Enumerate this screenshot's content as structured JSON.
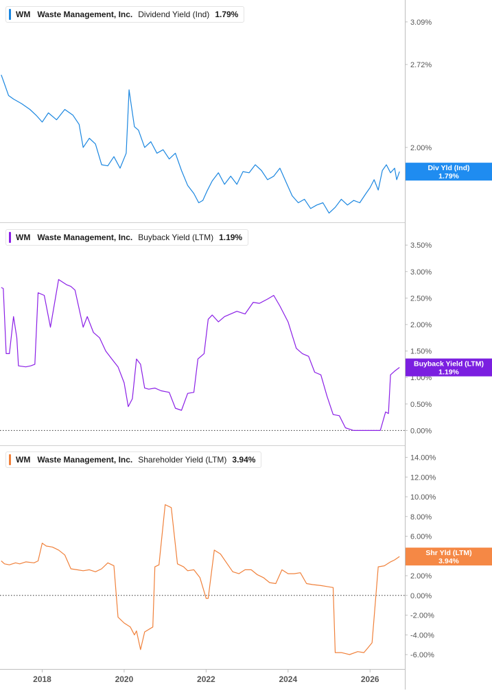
{
  "chart_data": [
    {
      "type": "line",
      "legend": {
        "ticker": "WM",
        "company": "Waste Management, Inc.",
        "metric": "Dividend Yield (Ind)",
        "value": "1.79%"
      },
      "tag": {
        "line1": "Div Yld (Ind)",
        "line2": "1.79%"
      },
      "color": "#1a86e0",
      "tag_color": "#1f8cf0",
      "ylim": [
        1.35,
        3.28
      ],
      "y_ticks": [
        {
          "value": 3.09,
          "label": "3.09%"
        },
        {
          "value": 2.72,
          "label": "2.72%"
        },
        {
          "value": 2.0,
          "label": "2.00%"
        }
      ],
      "zero_line": false,
      "series": [
        {
          "x": [
            2017.0,
            2017.08,
            2017.18,
            2017.3,
            2017.5,
            2017.7,
            2017.85,
            2018.0,
            2018.15,
            2018.35,
            2018.55,
            2018.75,
            2018.9,
            2019.0,
            2019.15,
            2019.3,
            2019.45,
            2019.6,
            2019.75,
            2019.9,
            2020.05,
            2020.12,
            2020.18,
            2020.25,
            2020.35,
            2020.5,
            2020.65,
            2020.8,
            2020.95,
            2021.1,
            2021.25,
            2021.4,
            2021.55,
            2021.7,
            2021.82,
            2021.92,
            2022.02,
            2022.15,
            2022.3,
            2022.45,
            2022.6,
            2022.75,
            2022.9,
            2023.05,
            2023.2,
            2023.35,
            2023.5,
            2023.65,
            2023.8,
            2023.95,
            2024.1,
            2024.25,
            2024.4,
            2024.55,
            2024.7,
            2024.85,
            2025.0,
            2025.15,
            2025.3,
            2025.45,
            2025.6,
            2025.75,
            2025.9,
            2026.0,
            2026.1,
            2026.2,
            2026.3,
            2026.4,
            2026.5,
            2026.6,
            2026.65,
            2026.72
          ],
          "values": [
            2.63,
            2.55,
            2.45,
            2.42,
            2.38,
            2.33,
            2.28,
            2.22,
            2.3,
            2.24,
            2.33,
            2.28,
            2.2,
            2.0,
            2.08,
            2.03,
            1.85,
            1.84,
            1.92,
            1.82,
            1.95,
            2.5,
            2.35,
            2.18,
            2.15,
            2.0,
            2.05,
            1.95,
            1.98,
            1.9,
            1.95,
            1.8,
            1.67,
            1.6,
            1.52,
            1.54,
            1.62,
            1.71,
            1.78,
            1.68,
            1.75,
            1.68,
            1.79,
            1.78,
            1.85,
            1.8,
            1.72,
            1.75,
            1.82,
            1.7,
            1.58,
            1.52,
            1.55,
            1.47,
            1.5,
            1.52,
            1.43,
            1.48,
            1.55,
            1.5,
            1.54,
            1.52,
            1.6,
            1.65,
            1.72,
            1.63,
            1.8,
            1.85,
            1.78,
            1.82,
            1.72,
            1.79
          ]
        }
      ]
    },
    {
      "type": "line",
      "legend": {
        "ticker": "WM",
        "company": "Waste Management, Inc.",
        "metric": "Buyback Yield (LTM)",
        "value": "1.19%"
      },
      "tag": {
        "line1": "Buyback Yield (LTM)",
        "line2": "1.19%"
      },
      "color": "#8a1ee6",
      "tag_color": "#7b1fe0",
      "ylim": [
        -0.28,
        3.93
      ],
      "y_ticks": [
        {
          "value": 3.5,
          "label": "3.50%"
        },
        {
          "value": 3.0,
          "label": "3.00%"
        },
        {
          "value": 2.5,
          "label": "2.50%"
        },
        {
          "value": 2.0,
          "label": "2.00%"
        },
        {
          "value": 1.5,
          "label": "1.50%"
        },
        {
          "value": 1.0,
          "label": "1.00%"
        },
        {
          "value": 0.5,
          "label": "0.50%"
        },
        {
          "value": 0.0,
          "label": "0.00%"
        }
      ],
      "zero_line": true,
      "series": [
        {
          "x": [
            2017.0,
            2017.05,
            2017.12,
            2017.2,
            2017.3,
            2017.38,
            2017.42,
            2017.6,
            2017.72,
            2017.82,
            2017.9,
            2018.05,
            2018.2,
            2018.4,
            2018.6,
            2018.7,
            2018.8,
            2019.0,
            2019.1,
            2019.25,
            2019.4,
            2019.55,
            2019.7,
            2019.85,
            2020.0,
            2020.1,
            2020.2,
            2020.3,
            2020.4,
            2020.5,
            2020.6,
            2020.75,
            2020.9,
            2021.1,
            2021.25,
            2021.4,
            2021.55,
            2021.7,
            2021.8,
            2021.95,
            2022.05,
            2022.15,
            2022.3,
            2022.45,
            2022.6,
            2022.75,
            2022.95,
            2023.15,
            2023.3,
            2023.5,
            2023.65,
            2023.8,
            2024.0,
            2024.1,
            2024.2,
            2024.35,
            2024.5,
            2024.65,
            2024.8,
            2024.95,
            2025.1,
            2025.25,
            2025.4,
            2025.6,
            2025.8,
            2026.0,
            2026.15,
            2026.25,
            2026.38,
            2026.45,
            2026.5,
            2026.6,
            2026.72
          ],
          "values": [
            2.7,
            2.68,
            1.45,
            1.45,
            2.15,
            1.75,
            1.22,
            1.2,
            1.22,
            1.25,
            2.6,
            2.55,
            1.95,
            2.85,
            2.75,
            2.72,
            2.65,
            1.95,
            2.15,
            1.85,
            1.75,
            1.5,
            1.35,
            1.2,
            0.9,
            0.45,
            0.6,
            1.35,
            1.25,
            0.8,
            0.78,
            0.8,
            0.75,
            0.72,
            0.42,
            0.38,
            0.7,
            0.72,
            1.35,
            1.45,
            2.1,
            2.18,
            2.05,
            2.15,
            2.2,
            2.25,
            2.2,
            2.42,
            2.4,
            2.48,
            2.55,
            2.35,
            2.05,
            1.8,
            1.55,
            1.45,
            1.4,
            1.1,
            1.05,
            0.65,
            0.3,
            0.28,
            0.05,
            0.0,
            0.0,
            0.0,
            0.0,
            0.0,
            0.35,
            0.32,
            1.05,
            1.12,
            1.19
          ]
        }
      ]
    },
    {
      "type": "line",
      "legend": {
        "ticker": "WM",
        "company": "Waste Management, Inc.",
        "metric": "Shareholder Yield (LTM)",
        "value": "3.94%"
      },
      "tag": {
        "line1": "Shr Yld (LTM)",
        "line2": "3.94%"
      },
      "color": "#f0803a",
      "tag_color": "#f58845",
      "ylim": [
        -7.46,
        15.22
      ],
      "y_ticks": [
        {
          "value": 14,
          "label": "14.00%"
        },
        {
          "value": 12,
          "label": "12.00%"
        },
        {
          "value": 10,
          "label": "10.00%"
        },
        {
          "value": 8,
          "label": "8.00%"
        },
        {
          "value": 6,
          "label": "6.00%"
        },
        {
          "value": 4,
          "label": "4.00%"
        },
        {
          "value": 2,
          "label": "2.00%"
        },
        {
          "value": 0,
          "label": "0.00%"
        },
        {
          "value": -2,
          "label": "-2.00%"
        },
        {
          "value": -4,
          "label": "-4.00%"
        },
        {
          "value": -6,
          "label": "-6.00%"
        }
      ],
      "zero_line": true,
      "series": [
        {
          "x": [
            2017.0,
            2017.08,
            2017.2,
            2017.35,
            2017.45,
            2017.6,
            2017.8,
            2017.9,
            2018.0,
            2018.1,
            2018.25,
            2018.4,
            2018.55,
            2018.7,
            2018.85,
            2019.0,
            2019.15,
            2019.3,
            2019.45,
            2019.6,
            2019.75,
            2019.85,
            2020.0,
            2020.15,
            2020.25,
            2020.3,
            2020.4,
            2020.5,
            2020.7,
            2020.75,
            2020.85,
            2021.0,
            2021.15,
            2021.3,
            2021.45,
            2021.55,
            2021.7,
            2021.85,
            2022.0,
            2022.05,
            2022.2,
            2022.35,
            2022.5,
            2022.65,
            2022.8,
            2022.95,
            2023.1,
            2023.25,
            2023.4,
            2023.55,
            2023.7,
            2023.85,
            2024.0,
            2024.15,
            2024.3,
            2024.45,
            2024.6,
            2024.8,
            2024.95,
            2025.1,
            2025.15,
            2025.3,
            2025.5,
            2025.7,
            2025.85,
            2025.95,
            2026.05,
            2026.2,
            2026.35,
            2026.5,
            2026.6,
            2026.72
          ],
          "values": [
            3.5,
            3.2,
            3.1,
            3.3,
            3.2,
            3.4,
            3.3,
            3.5,
            5.3,
            5.0,
            4.9,
            4.6,
            4.1,
            2.7,
            2.6,
            2.5,
            2.6,
            2.4,
            2.7,
            3.3,
            3.0,
            -2.2,
            -2.8,
            -3.2,
            -4.0,
            -3.6,
            -5.5,
            -3.7,
            -3.2,
            2.9,
            3.1,
            9.2,
            8.9,
            3.2,
            2.9,
            2.5,
            2.6,
            1.8,
            -0.3,
            -0.3,
            4.6,
            4.2,
            3.3,
            2.4,
            2.2,
            2.6,
            2.6,
            2.1,
            1.8,
            1.3,
            1.2,
            2.6,
            2.2,
            2.2,
            2.3,
            1.2,
            1.1,
            1.0,
            0.9,
            0.8,
            -5.8,
            -5.8,
            -6.0,
            -5.7,
            -5.8,
            -5.3,
            -4.8,
            2.9,
            3.0,
            3.4,
            3.6,
            3.94
          ]
        }
      ]
    }
  ],
  "x_axis": {
    "xlim": [
      2016.97,
      2026.85
    ],
    "ticks": [
      {
        "value": 2018,
        "label": "2018"
      },
      {
        "value": 2020,
        "label": "2020"
      },
      {
        "value": 2022,
        "label": "2022"
      },
      {
        "value": 2024,
        "label": "2024"
      },
      {
        "value": 2026,
        "label": "2026"
      }
    ]
  },
  "colors": {
    "axis": "#bdbdbd",
    "tick_text": "#555555",
    "divider": "#d0d0d0"
  }
}
